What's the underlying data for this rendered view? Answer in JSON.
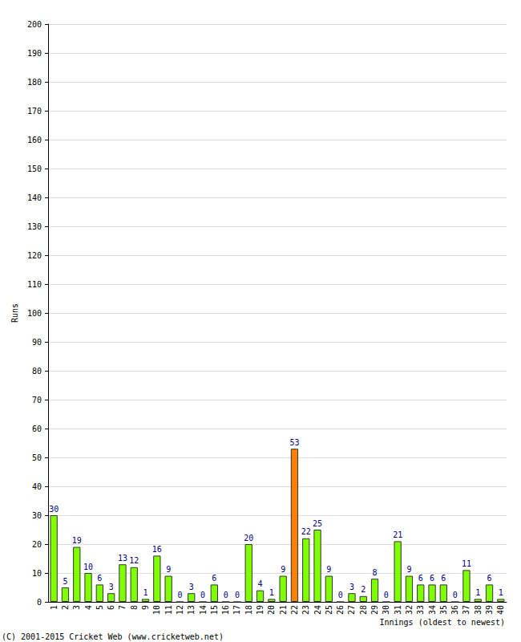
{
  "chart_data": {
    "type": "bar",
    "x_label": "Innings (oldest to newest)",
    "y_label": "Runs",
    "annotations": [
      "(C) 2001-2015 Cricket Web (www.cricketweb.net)"
    ],
    "categories": [
      "1",
      "2",
      "3",
      "4",
      "5",
      "6",
      "7",
      "8",
      "9",
      "10",
      "11",
      "12",
      "13",
      "14",
      "15",
      "16",
      "17",
      "18",
      "19",
      "20",
      "21",
      "22",
      "23",
      "24",
      "25",
      "26",
      "27",
      "28",
      "29",
      "30",
      "31",
      "32",
      "33",
      "34",
      "35",
      "36",
      "37",
      "38",
      "39",
      "40"
    ],
    "values": [
      30,
      5,
      19,
      10,
      6,
      3,
      13,
      12,
      1,
      16,
      9,
      0,
      3,
      0,
      6,
      0,
      0,
      20,
      4,
      1,
      9,
      53,
      22,
      25,
      9,
      0,
      3,
      2,
      8,
      0,
      21,
      9,
      6,
      6,
      6,
      0,
      11,
      1,
      6,
      1
    ],
    "colors": [
      "#80ff00",
      "#80ff00",
      "#80ff00",
      "#80ff00",
      "#80ff00",
      "#80ff00",
      "#80ff00",
      "#80ff00",
      "#80ff00",
      "#80ff00",
      "#80ff00",
      "#80ff00",
      "#80ff00",
      "#80ff00",
      "#80ff00",
      "#80ff00",
      "#80ff00",
      "#80ff00",
      "#80ff00",
      "#80ff00",
      "#80ff00",
      "#ff8000",
      "#80ff00",
      "#80ff00",
      "#80ff00",
      "#80ff00",
      "#80ff00",
      "#80ff00",
      "#80ff00",
      "#80ff00",
      "#80ff00",
      "#80ff00",
      "#80ff00",
      "#80ff00",
      "#80ff00",
      "#80ff00",
      "#80ff00",
      "#80ff00",
      "#80ff00",
      "#80ff00"
    ],
    "ylim": [
      0,
      200
    ],
    "yticks": [
      0,
      10,
      20,
      30,
      40,
      50,
      60,
      70,
      80,
      90,
      100,
      110,
      120,
      130,
      140,
      150,
      160,
      170,
      180,
      190,
      200
    ],
    "grid": true,
    "data_labels": true
  }
}
